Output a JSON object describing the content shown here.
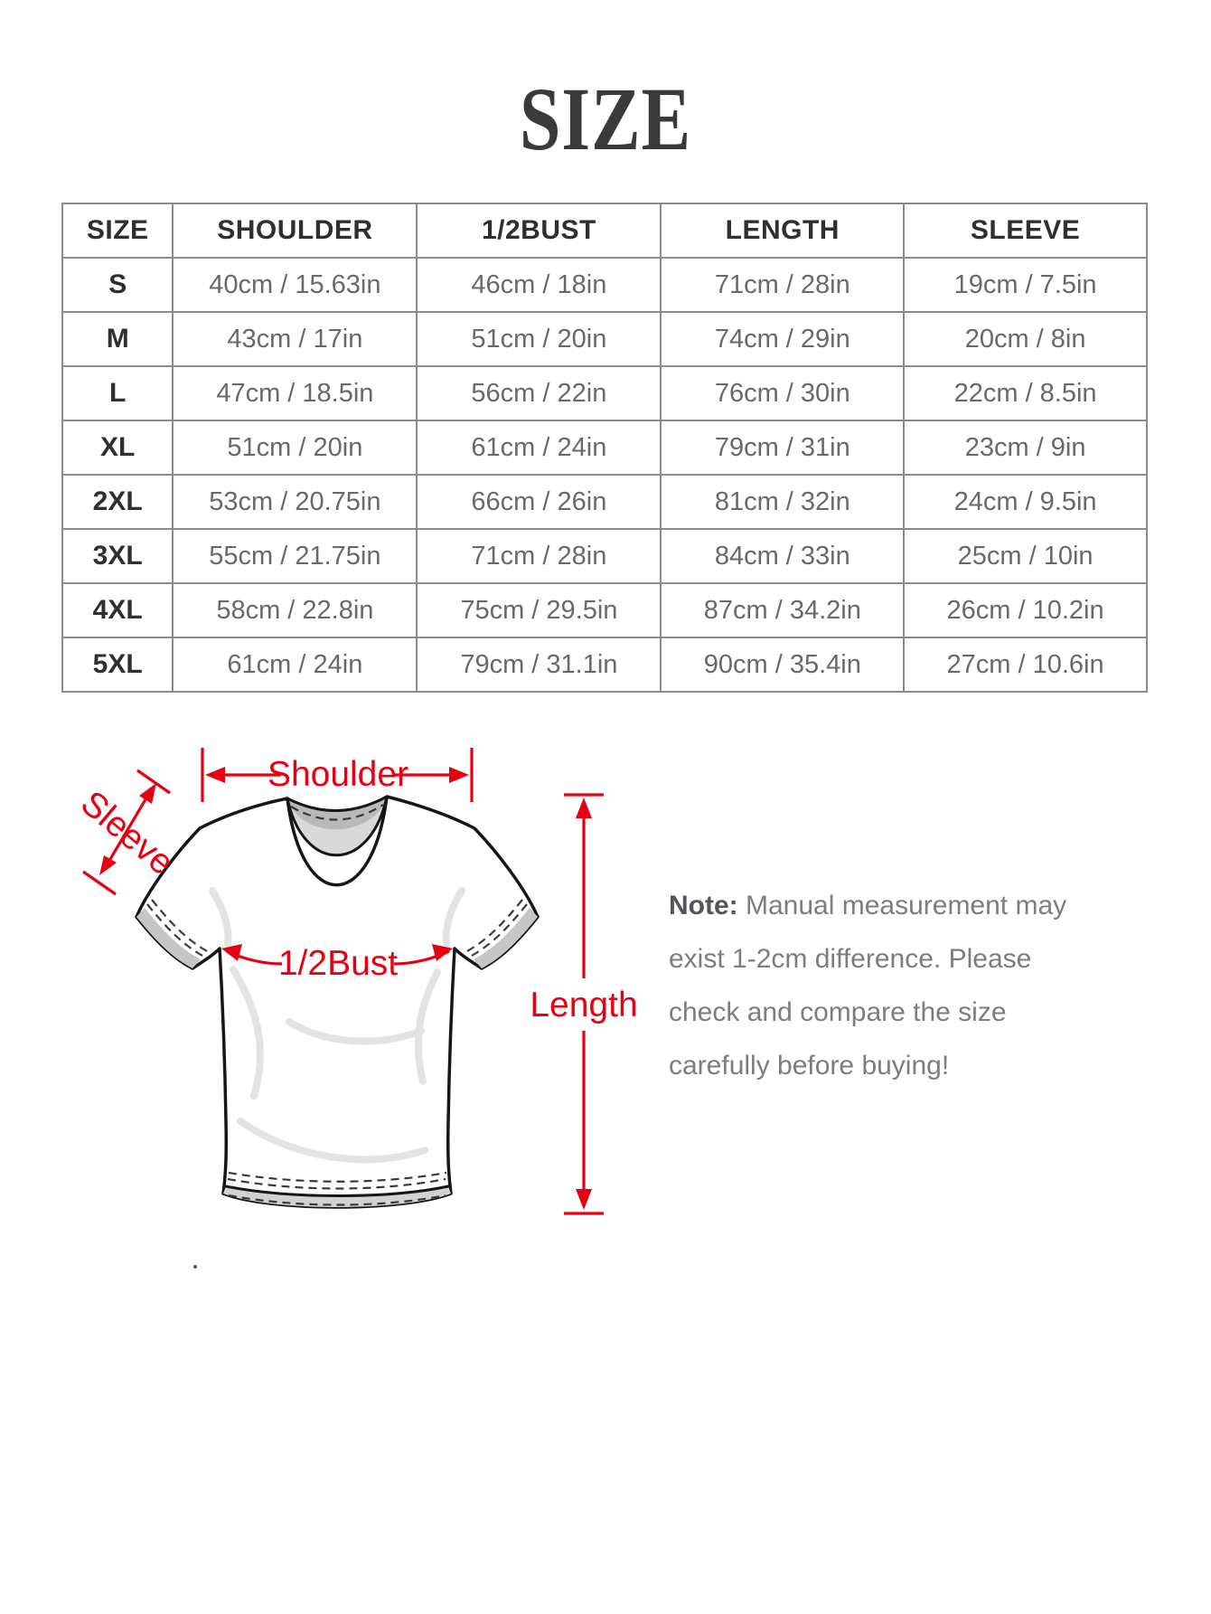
{
  "page": {
    "title": "SIZE"
  },
  "colors": {
    "accent_red": "#e60012",
    "table_border": "#8b8b8b",
    "cell_text": "#68696d",
    "header_text": "#2f2f32"
  },
  "table": {
    "headers": [
      "SIZE",
      "SHOULDER",
      "1/2BUST",
      "LENGTH",
      "SLEEVE"
    ],
    "rows": [
      {
        "size": "S",
        "shoulder": "40cm / 15.63in",
        "bust": "46cm / 18in",
        "length": "71cm / 28in",
        "sleeve": "19cm / 7.5in"
      },
      {
        "size": "M",
        "shoulder": "43cm / 17in",
        "bust": "51cm / 20in",
        "length": "74cm / 29in",
        "sleeve": "20cm / 8in"
      },
      {
        "size": "L",
        "shoulder": "47cm / 18.5in",
        "bust": "56cm / 22in",
        "length": "76cm / 30in",
        "sleeve": "22cm / 8.5in"
      },
      {
        "size": "XL",
        "shoulder": "51cm / 20in",
        "bust": "61cm / 24in",
        "length": "79cm / 31in",
        "sleeve": "23cm / 9in"
      },
      {
        "size": "2XL",
        "shoulder": "53cm / 20.75in",
        "bust": "66cm / 26in",
        "length": "81cm / 32in",
        "sleeve": "24cm / 9.5in"
      },
      {
        "size": "3XL",
        "shoulder": "55cm / 21.75in",
        "bust": "71cm / 28in",
        "length": "84cm / 33in",
        "sleeve": "25cm / 10in"
      },
      {
        "size": "4XL",
        "shoulder": "58cm / 22.8in",
        "bust": "75cm / 29.5in",
        "length": "87cm / 34.2in",
        "sleeve": "26cm / 10.2in"
      },
      {
        "size": "5XL",
        "shoulder": "61cm / 24in",
        "bust": "79cm / 31.1in",
        "length": "90cm / 35.4in",
        "sleeve": "27cm / 10.6in"
      }
    ]
  },
  "diagram": {
    "labels": {
      "shoulder": "Shoulder",
      "sleeve": "Sleeve",
      "bust": "1/2Bust",
      "length": "Length"
    }
  },
  "note": {
    "label": "Note:",
    "line1_rest": " Manual measurement may",
    "line2": "exist 1-2cm difference. Please",
    "line3": "check and compare the size",
    "line4": "carefully before buying!"
  }
}
